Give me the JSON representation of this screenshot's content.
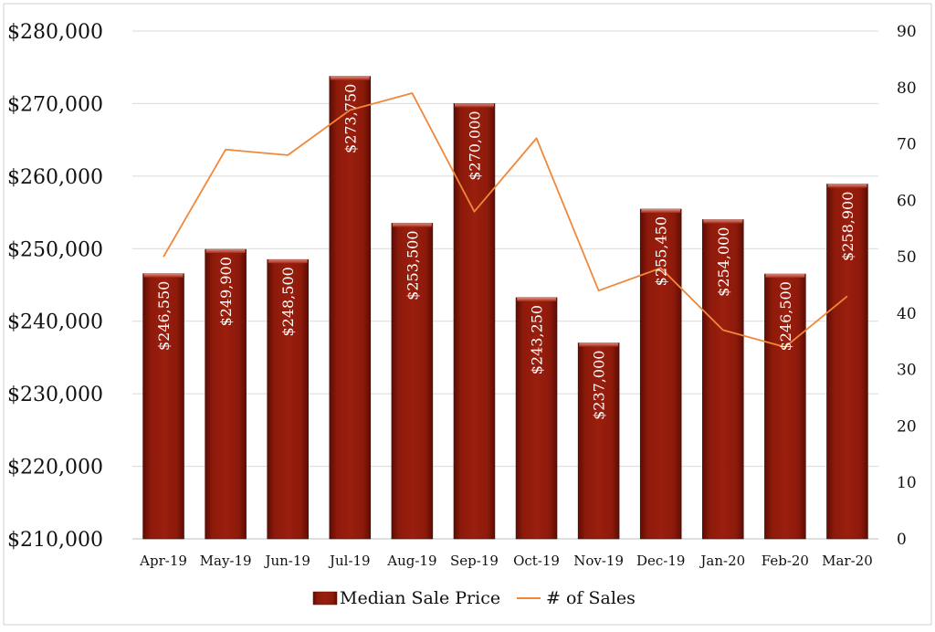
{
  "chart_data": {
    "type": "bar",
    "categories": [
      "Apr-19",
      "May-19",
      "Jun-19",
      "Jul-19",
      "Aug-19",
      "Sep-19",
      "Oct-19",
      "Nov-19",
      "Dec-19",
      "Jan-20",
      "Feb-20",
      "Mar-20"
    ],
    "series": [
      {
        "name": "Median Sale Price",
        "type": "bar",
        "axis": "left",
        "color": "#8B1508",
        "values": [
          246550,
          249900,
          248500,
          273750,
          253500,
          270000,
          243250,
          237000,
          255450,
          254000,
          246500,
          258900
        ],
        "labels": [
          "$246,550",
          "$249,900",
          "$248,500",
          "$273,750",
          "$253,500",
          "$270,000",
          "$243,250",
          "$237,000",
          "$255,450",
          "$254,000",
          "$246,500",
          "$258,900"
        ]
      },
      {
        "name": "# of Sales",
        "type": "line",
        "axis": "right",
        "color": "#F0883A",
        "values": [
          50,
          69,
          68,
          76,
          79,
          58,
          71,
          44,
          48,
          37,
          34,
          43
        ]
      }
    ],
    "y_left": {
      "ylim": [
        210000,
        280000
      ],
      "ticks": [
        210000,
        220000,
        230000,
        240000,
        250000,
        260000,
        270000,
        280000
      ],
      "tick_labels": [
        "$210,000",
        "$220,000",
        "$230,000",
        "$240,000",
        "$250,000",
        "$260,000",
        "$270,000",
        "$280,000"
      ]
    },
    "y_right": {
      "ylim": [
        0,
        90
      ],
      "ticks": [
        0,
        10,
        20,
        30,
        40,
        50,
        60,
        70,
        80,
        90
      ],
      "tick_labels": [
        "0",
        "10",
        "20",
        "30",
        "40",
        "50",
        "60",
        "70",
        "80",
        "90"
      ]
    },
    "title": "",
    "xlabel": "",
    "ylabel": "",
    "grid": true,
    "legend": "bottom"
  }
}
